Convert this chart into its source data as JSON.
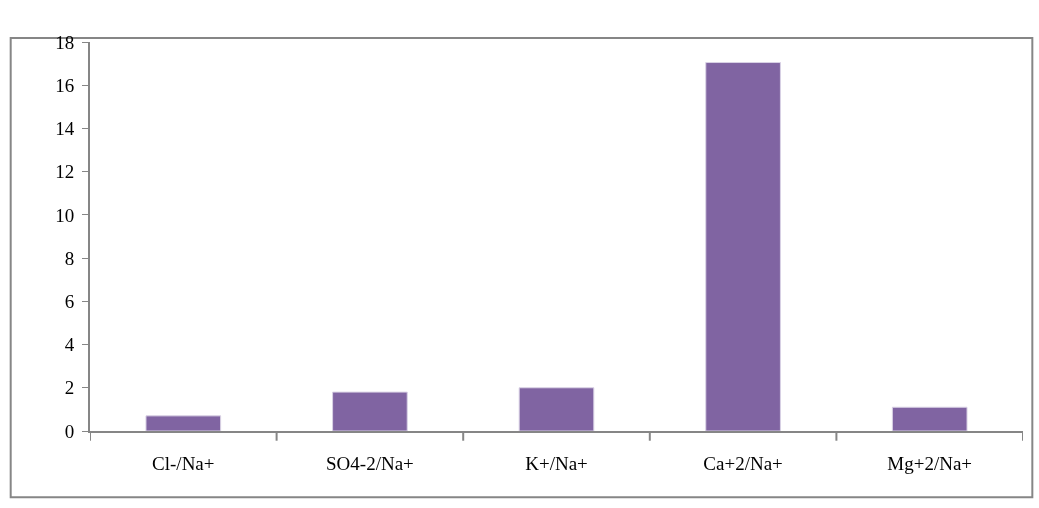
{
  "chart_data": {
    "type": "bar",
    "categories": [
      "Cl-/Na+",
      "SO4-2/Na+",
      "K+/Na+",
      "Ca+2/Na+",
      "Mg+2/Na+"
    ],
    "values": [
      0.7,
      1.8,
      2.0,
      17.05,
      1.1
    ],
    "color": "#8064a2",
    "ylim": [
      0,
      18
    ],
    "yticks": [
      0,
      2,
      4,
      6,
      8,
      10,
      12,
      14,
      16,
      18
    ]
  }
}
